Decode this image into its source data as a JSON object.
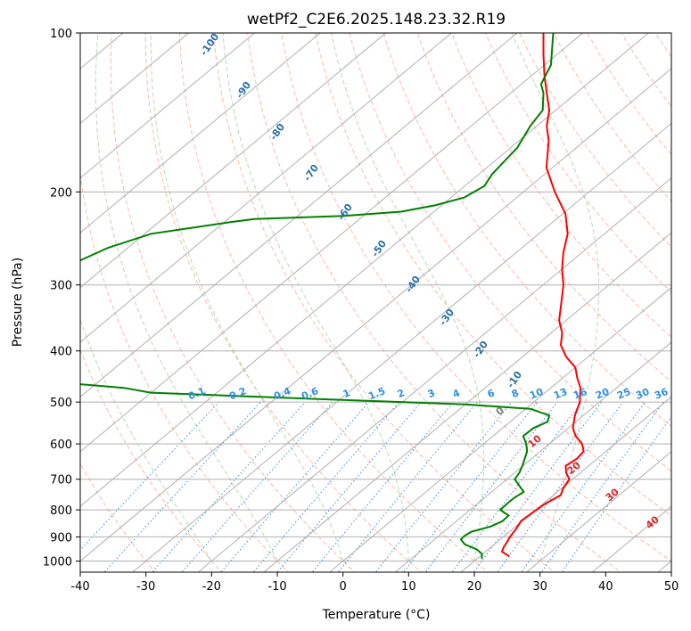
{
  "chart_data": {
    "type": "line",
    "title": "wetPf2_C2E6.2025.148.23.32.R19",
    "xlabel": "Temperature (°C)",
    "ylabel": "Pressure (hPa)",
    "xlim": [
      -40,
      50
    ],
    "ylim": [
      1050,
      100
    ],
    "y_scale": "log",
    "grid": true,
    "x_ticks": [
      -40,
      -30,
      -20,
      -10,
      0,
      10,
      20,
      30,
      40,
      50
    ],
    "y_ticks": [
      100,
      200,
      300,
      400,
      500,
      600,
      700,
      800,
      900,
      1000
    ],
    "skew_note": "Skew-T log-P diagram",
    "series": [
      {
        "name": "",
        "color": "#ff0000",
        "points": [
          [
            980,
            24.5
          ],
          [
            960,
            22.5
          ],
          [
            940,
            21.9
          ],
          [
            920,
            21.5
          ],
          [
            900,
            21.0
          ],
          [
            870,
            20.5
          ],
          [
            840,
            19.8
          ],
          [
            810,
            20.0
          ],
          [
            780,
            20.3
          ],
          [
            750,
            21.1
          ],
          [
            730,
            20.3
          ],
          [
            700,
            19.5
          ],
          [
            680,
            17.8
          ],
          [
            660,
            16.5
          ],
          [
            640,
            16.9
          ],
          [
            620,
            16.6
          ],
          [
            600,
            15.0
          ],
          [
            580,
            12.6
          ],
          [
            560,
            10.7
          ],
          [
            530,
            8.7
          ],
          [
            500,
            7.0
          ],
          [
            470,
            4.5
          ],
          [
            450,
            2.2
          ],
          [
            430,
            0.0
          ],
          [
            410,
            -3.4
          ],
          [
            390,
            -6.3
          ],
          [
            370,
            -8.3
          ],
          [
            350,
            -11.1
          ],
          [
            330,
            -13.3
          ],
          [
            300,
            -16.9
          ],
          [
            280,
            -20.0
          ],
          [
            260,
            -22.9
          ],
          [
            240,
            -25.6
          ],
          [
            220,
            -29.6
          ],
          [
            200,
            -35.2
          ],
          [
            180,
            -40.9
          ],
          [
            160,
            -45.5
          ],
          [
            150,
            -48.5
          ],
          [
            140,
            -51.0
          ],
          [
            130,
            -54.5
          ],
          [
            120,
            -58.2
          ],
          [
            110,
            -62.0
          ],
          [
            100,
            -66.0
          ]
        ]
      },
      {
        "name": "",
        "color": "#008000",
        "points": [
          [
            990,
            20.7
          ],
          [
            970,
            19.9
          ],
          [
            950,
            18.2
          ],
          [
            930,
            15.5
          ],
          [
            910,
            14.0
          ],
          [
            895,
            13.9
          ],
          [
            880,
            14.2
          ],
          [
            860,
            16.2
          ],
          [
            840,
            17.0
          ],
          [
            820,
            16.9
          ],
          [
            800,
            14.6
          ],
          [
            780,
            14.5
          ],
          [
            760,
            14.5
          ],
          [
            740,
            14.9
          ],
          [
            700,
            11.2
          ],
          [
            680,
            10.7
          ],
          [
            660,
            9.9
          ],
          [
            620,
            8.0
          ],
          [
            600,
            6.5
          ],
          [
            580,
            4.6
          ],
          [
            560,
            4.7
          ],
          [
            545,
            5.7
          ],
          [
            530,
            4.8
          ],
          [
            515,
            0.7
          ],
          [
            505,
            -10.0
          ],
          [
            495,
            -30.0
          ],
          [
            485,
            -50.0
          ],
          [
            480,
            -60.0
          ],
          [
            470,
            -65.0
          ],
          [
            460,
            -75.0
          ],
          [
            455,
            -85.0
          ],
          [
            445,
            -80.0
          ],
          [
            440,
            -77.0
          ],
          [
            430,
            -78.0
          ],
          [
            340,
            -90.0
          ],
          [
            320,
            -90.0
          ],
          [
            300,
            -92.0
          ],
          [
            285,
            -94.0
          ],
          [
            270,
            -95.0
          ],
          [
            255,
            -93.0
          ],
          [
            240,
            -89.0
          ],
          [
            228,
            -79.0
          ],
          [
            225,
            -76.0
          ],
          [
            222,
            -63.0
          ],
          [
            218,
            -55.0
          ],
          [
            212,
            -51.0
          ],
          [
            205,
            -48.0
          ],
          [
            195,
            -47.0
          ],
          [
            185,
            -48.0
          ],
          [
            175,
            -48.5
          ],
          [
            165,
            -49.0
          ],
          [
            150,
            -51.0
          ],
          [
            140,
            -52.0
          ],
          [
            130,
            -55.0
          ],
          [
            125,
            -57.0
          ],
          [
            115,
            -59.0
          ],
          [
            100,
            -64.5
          ]
        ]
      }
    ],
    "dry_adiabat_labels": [
      "-100",
      "-90",
      "-80",
      "-70",
      "-60",
      "-50",
      "-40",
      "-30",
      "-20",
      "-10",
      "0",
      "10",
      "20",
      "30",
      "40"
    ],
    "mixing_ratio_labels": [
      "0.1",
      "0.2",
      "0.4",
      "0.6",
      "1",
      "1.5",
      "2",
      "3",
      "4",
      "6",
      "8",
      "10",
      "13",
      "16",
      "20",
      "25",
      "30",
      "36"
    ],
    "mixing_ratio_values": [
      0.1,
      0.2,
      0.4,
      0.6,
      1,
      1.5,
      2,
      3,
      4,
      6,
      8,
      10,
      13,
      16,
      20,
      25,
      30,
      36
    ]
  }
}
